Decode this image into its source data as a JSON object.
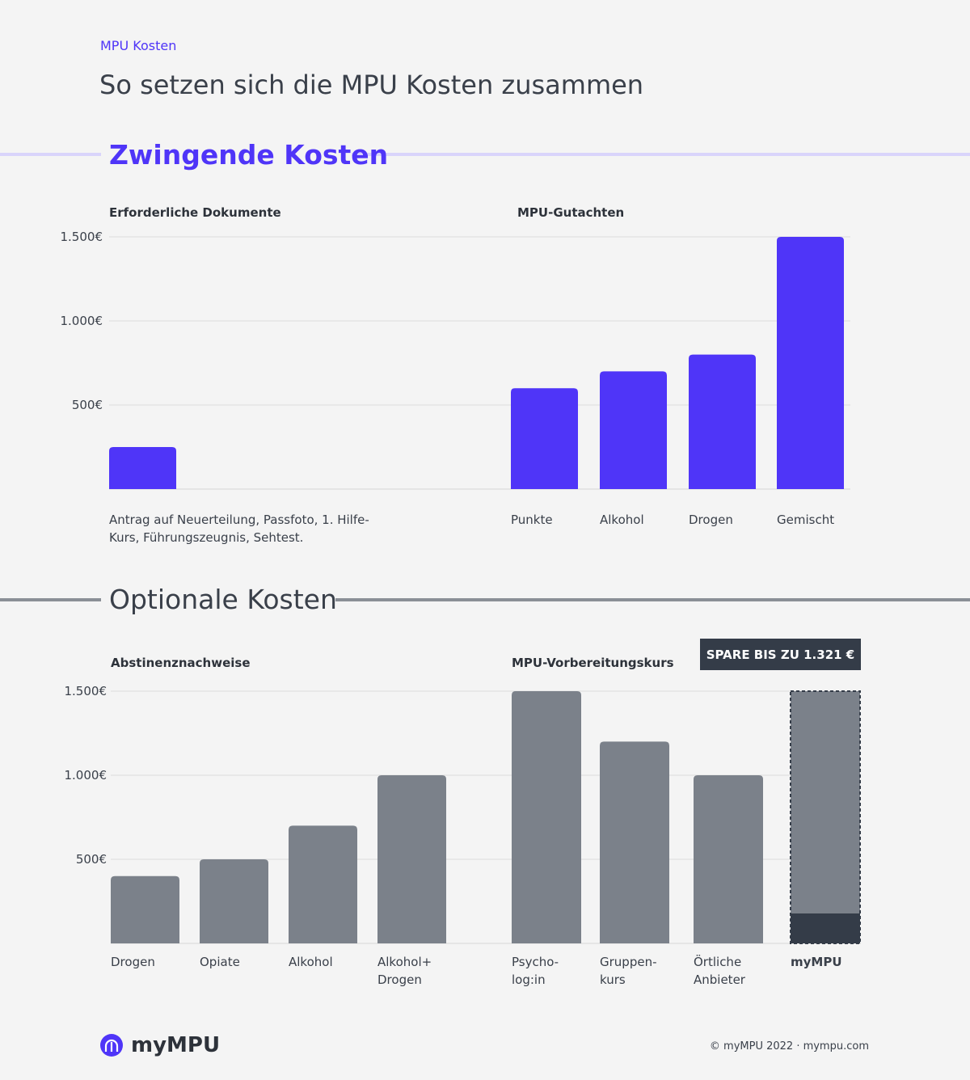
{
  "header": {
    "kicker": "MPU Kosten",
    "title": "So setzen sich die MPU Kosten zusammen"
  },
  "sections": [
    "Zwingende Kosten",
    "Optionale Kosten"
  ],
  "badge": "SPARE BIS ZU 1.321 €",
  "chart_data": [
    {
      "type": "bar",
      "title": "Erforderliche Dokumente",
      "color": "#4f35f8",
      "categories": [
        "Antrag auf Neuerteilung, Passfoto, 1. Hilfe-\nKurs, Führungszeugnis, Sehtest."
      ],
      "values": [
        250
      ],
      "ylim": [
        0,
        1500
      ],
      "yticks": [
        {
          "value": 500,
          "label": "500€"
        },
        {
          "value": 1000,
          "label": "1.000€"
        },
        {
          "value": 1500,
          "label": "1.500€"
        }
      ],
      "grid": true
    },
    {
      "type": "bar",
      "title": "MPU-Gutachten",
      "color": "#4f35f8",
      "categories": [
        "Punkte",
        "Alkohol",
        "Drogen",
        "Gemischt"
      ],
      "values": [
        600,
        700,
        800,
        1500
      ],
      "ylim": [
        0,
        1500
      ]
    },
    {
      "type": "bar",
      "title": "Abstinenznachweise",
      "color": "#7b818a",
      "categories": [
        "Drogen",
        "Opiate",
        "Alkohol",
        "Alkohol+\nDrogen"
      ],
      "values": [
        400,
        500,
        700,
        1000
      ],
      "ylim": [
        0,
        1500
      ],
      "yticks": [
        {
          "value": 500,
          "label": "500€"
        },
        {
          "value": 1000,
          "label": "1.000€"
        },
        {
          "value": 1500,
          "label": "1.500€"
        }
      ],
      "grid": true
    },
    {
      "type": "bar",
      "title": "MPU-Vorbereitungskurs",
      "color": "#7b818a",
      "base_color": "#343c48",
      "categories": [
        "Psycho-\nlog:in",
        "Gruppen-\nkurs",
        "Örtliche\nAnbieter",
        "myMPU"
      ],
      "values": [
        1500,
        1200,
        1000,
        179
      ],
      "savings_values": [
        null,
        null,
        null,
        1321
      ],
      "ylim": [
        0,
        1500
      ]
    }
  ],
  "footer": {
    "logo": "myMPU",
    "copyright": "© myMPU 2022 · mympu.com"
  }
}
